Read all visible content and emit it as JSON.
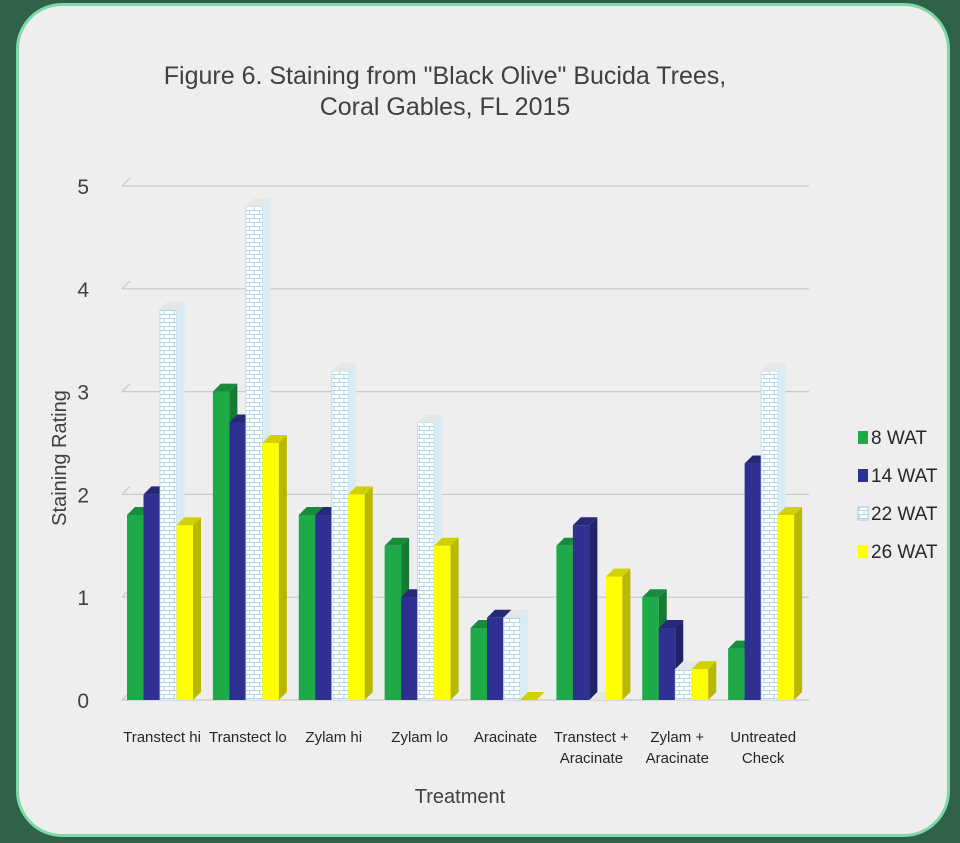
{
  "chart_data": {
    "type": "bar",
    "title": [
      "Figure 6. Staining from \"Black Olive\" Bucida Trees,",
      "Coral Gables, FL 2015"
    ],
    "xlabel": "Treatment",
    "ylabel": "Staining  Rating",
    "ylim": [
      0,
      5
    ],
    "yticks": [
      "0",
      "1",
      "2",
      "3",
      "4",
      "5"
    ],
    "grid": true,
    "legend_position": "right",
    "categories": [
      [
        "Transtect hi"
      ],
      [
        "Transtect lo"
      ],
      [
        "Zylam hi"
      ],
      [
        "Zylam lo"
      ],
      [
        "Aracinate"
      ],
      [
        "Transtect +",
        "Aracinate"
      ],
      [
        "Zylam +",
        "Aracinate"
      ],
      [
        "Untreated",
        "Check"
      ]
    ],
    "series": [
      {
        "name": "8 WAT",
        "color": "#1faa4a",
        "values": [
          1.8,
          3.0,
          1.8,
          1.5,
          0.7,
          1.5,
          1.0,
          0.5
        ]
      },
      {
        "name": "14 WAT",
        "color": "#2e3192",
        "values": [
          2.0,
          2.7,
          1.8,
          1.0,
          0.8,
          1.7,
          0.7,
          2.3
        ]
      },
      {
        "name": "22 WAT",
        "color": "#ffffff",
        "pattern": "brick",
        "values": [
          3.8,
          4.8,
          3.2,
          2.7,
          0.8,
          0.0,
          0.3,
          3.2
        ]
      },
      {
        "name": "26 WAT",
        "color": "#ffff00",
        "values": [
          1.7,
          2.5,
          2.0,
          1.5,
          0.0,
          1.2,
          0.3,
          1.8
        ]
      }
    ]
  }
}
